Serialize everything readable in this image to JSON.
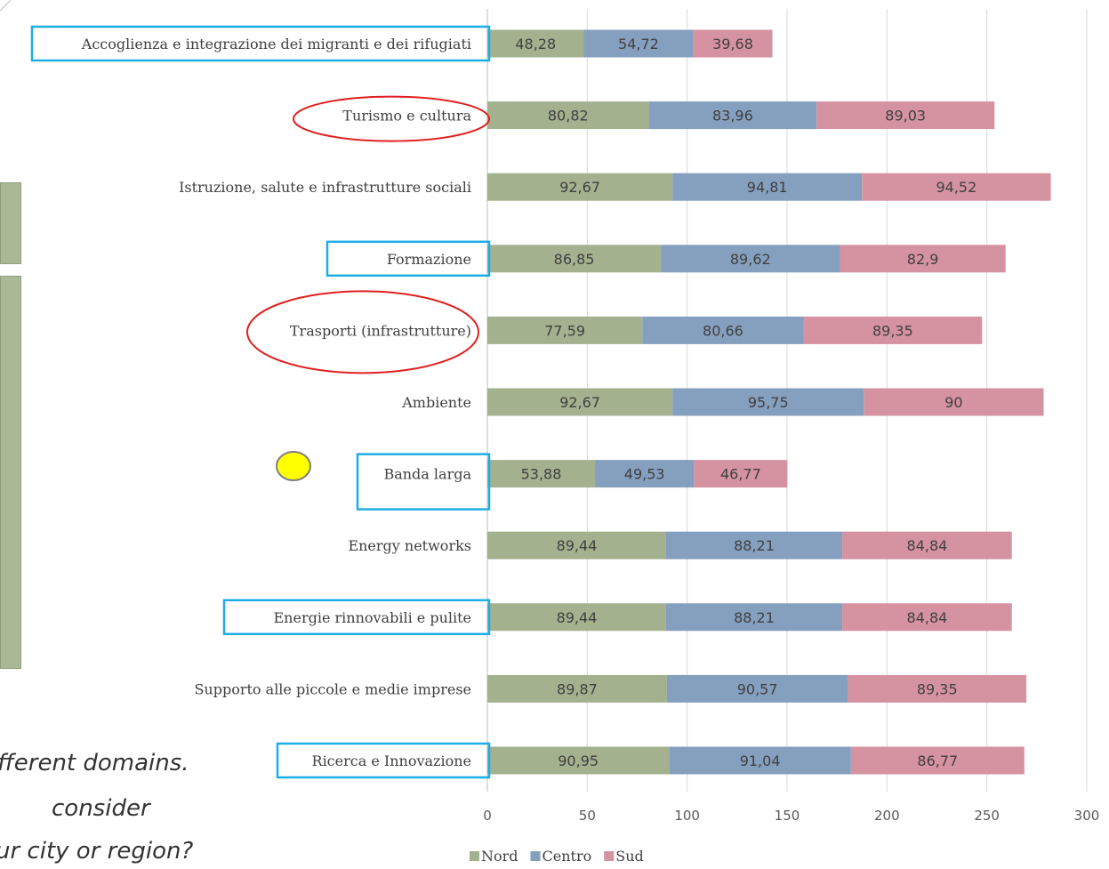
{
  "background": {
    "question_lines": [
      "fferent domains.",
      "consider",
      "ur city or region?"
    ]
  },
  "colors": {
    "Nord": "#a3b18f",
    "Centro": "#859fbf",
    "Sud": "#d592a1",
    "highlight_box": "#1eaee6",
    "highlight_ellipse": "#e02020",
    "marker": "#ffff00"
  },
  "chart_data": {
    "type": "bar",
    "orientation": "horizontal",
    "stacked": true,
    "categories": [
      "Accoglienza e integrazione dei migranti e dei rifugiati",
      "Turismo e cultura",
      "Istruzione, salute e infrastrutture sociali",
      "Formazione",
      "Trasporti (infrastrutture)",
      "Ambiente",
      "Banda larga",
      "Energy networks",
      "Energie rinnovabili e pulite",
      "Supporto alle piccole e medie imprese",
      "Ricerca e Innovazione"
    ],
    "series": [
      {
        "name": "Nord",
        "values": [
          48.28,
          80.82,
          92.67,
          86.85,
          77.59,
          92.67,
          53.88,
          89.44,
          89.44,
          89.87,
          90.95
        ],
        "labels": [
          "48,28",
          "80,82",
          "92,67",
          "86,85",
          "77,59",
          "92,67",
          "53,88",
          "89,44",
          "89,44",
          "89,87",
          "90,95"
        ]
      },
      {
        "name": "Centro",
        "values": [
          54.72,
          83.96,
          94.81,
          89.62,
          80.66,
          95.75,
          49.53,
          88.21,
          88.21,
          90.57,
          91.04
        ],
        "labels": [
          "54,72",
          "83,96",
          "94,81",
          "89,62",
          "80,66",
          "95,75",
          "49,53",
          "88,21",
          "88,21",
          "90,57",
          "91,04"
        ]
      },
      {
        "name": "Sud",
        "values": [
          39.68,
          89.03,
          94.52,
          82.9,
          89.35,
          90,
          46.77,
          84.84,
          84.84,
          89.35,
          86.77
        ],
        "labels": [
          "39,68",
          "89,03",
          "94,52",
          "82,9",
          "89,35",
          "90",
          "46,77",
          "84,84",
          "84,84",
          "89,35",
          "86,77"
        ]
      }
    ],
    "xlim": [
      0,
      300
    ],
    "xticks": [
      0,
      50,
      100,
      150,
      200,
      250,
      300
    ],
    "xtick_labels": [
      "0",
      "50",
      "100",
      "150",
      "200",
      "250",
      "300"
    ],
    "grid": "vertical",
    "legend": "bottom-left",
    "highlight_boxed": [
      0,
      3,
      6,
      8,
      10
    ],
    "highlight_circled": [
      1,
      4
    ],
    "title": "",
    "xlabel": "",
    "ylabel": ""
  }
}
